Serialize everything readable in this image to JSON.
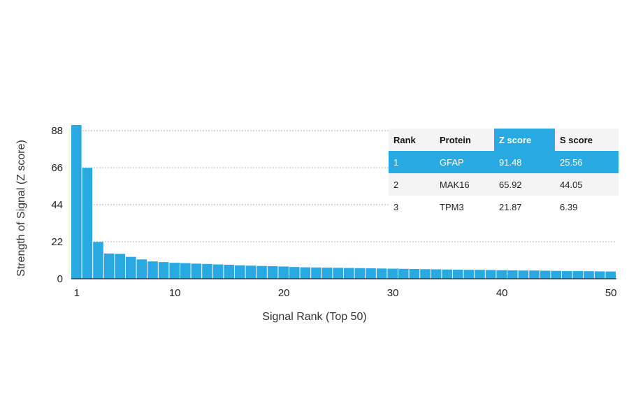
{
  "chart_data": {
    "type": "bar",
    "xlabel": "Signal Rank (Top 50)",
    "ylabel": "Strength of Signal (Z score)",
    "ylim": [
      0,
      88
    ],
    "yticks": [
      0,
      22,
      44,
      66,
      88
    ],
    "xticks": [
      1,
      10,
      20,
      30,
      40,
      50
    ],
    "color": "#29a9e1",
    "x": [
      1,
      2,
      3,
      4,
      5,
      6,
      7,
      8,
      9,
      10,
      11,
      12,
      13,
      14,
      15,
      16,
      17,
      18,
      19,
      20,
      21,
      22,
      23,
      24,
      25,
      26,
      27,
      28,
      29,
      30,
      31,
      32,
      33,
      34,
      35,
      36,
      37,
      38,
      39,
      40,
      41,
      42,
      43,
      44,
      45,
      46,
      47,
      48,
      49,
      50
    ],
    "values": [
      91.48,
      65.92,
      21.87,
      15.0,
      14.8,
      13.0,
      11.5,
      10.3,
      9.9,
      9.5,
      9.3,
      9.0,
      8.8,
      8.5,
      8.3,
      8.0,
      7.8,
      7.6,
      7.5,
      7.3,
      7.0,
      6.8,
      6.7,
      6.6,
      6.5,
      6.4,
      6.3,
      6.2,
      6.1,
      6.0,
      5.9,
      5.8,
      5.7,
      5.6,
      5.5,
      5.4,
      5.3,
      5.3,
      5.2,
      5.1,
      5.0,
      4.9,
      4.9,
      4.8,
      4.7,
      4.6,
      4.6,
      4.5,
      4.4,
      4.3
    ],
    "grid": true,
    "table": {
      "columns": [
        "Rank",
        "Protein",
        "Z score",
        "S score"
      ],
      "highlight_column": 2,
      "highlight_row": 0,
      "rows": [
        [
          "1",
          "GFAP",
          "91.48",
          "25.56"
        ],
        [
          "2",
          "MAK16",
          "65.92",
          "44.05"
        ],
        [
          "3",
          "TPM3",
          "21.87",
          "6.39"
        ]
      ]
    }
  }
}
